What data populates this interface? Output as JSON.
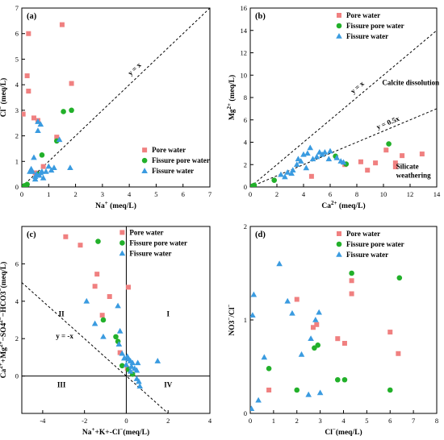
{
  "colors": {
    "pore": "#F08080",
    "fissure_pore": "#22B02A",
    "fissure": "#3A9BE0"
  },
  "chart_data": [
    {
      "panel": "(a)",
      "type": "scatter",
      "xlabel": "Na+ (meq/L)",
      "ylabel": "Cl- (meq/L)",
      "xlim": [
        0,
        7
      ],
      "ylim": [
        0,
        7
      ],
      "xticks": [
        0,
        1,
        2,
        3,
        4,
        5,
        6,
        7
      ],
      "yticks": [
        0,
        1,
        2,
        3,
        4,
        5,
        6,
        7
      ],
      "lines": [
        {
          "label": "y = x",
          "slope": 1
        }
      ],
      "legend": "bottom-right",
      "series": [
        {
          "name": "Pore water",
          "marker": "square",
          "color": "#F08080",
          "points": [
            [
              0.05,
              2.85
            ],
            [
              0.2,
              4.35
            ],
            [
              0.25,
              6.0
            ],
            [
              0.25,
              3.75
            ],
            [
              0.45,
              2.7
            ],
            [
              0.6,
              2.6
            ],
            [
              1.3,
              1.95
            ],
            [
              1.5,
              6.35
            ],
            [
              1.85,
              4.05
            ],
            [
              0.8,
              0.8
            ],
            [
              0.5,
              0.55
            ]
          ]
        },
        {
          "name": "Fissure pore water",
          "marker": "circle",
          "color": "#22B02A",
          "points": [
            [
              0.1,
              0.05
            ],
            [
              0.2,
              0.1
            ],
            [
              0.75,
              1.25
            ],
            [
              1.3,
              1.8
            ],
            [
              1.55,
              2.95
            ],
            [
              1.85,
              3.0
            ],
            [
              0.6,
              0.5
            ]
          ]
        },
        {
          "name": "Fissure water",
          "marker": "triangle",
          "color": "#3A9BE0",
          "points": [
            [
              0.3,
              0.6
            ],
            [
              0.35,
              0.7
            ],
            [
              0.4,
              0.6
            ],
            [
              0.45,
              1.15
            ],
            [
              0.5,
              0.3
            ],
            [
              0.55,
              0.5
            ],
            [
              0.6,
              2.2
            ],
            [
              0.6,
              2.55
            ],
            [
              0.7,
              2.45
            ],
            [
              0.7,
              0.55
            ],
            [
              0.75,
              0.6
            ],
            [
              0.8,
              0.35
            ],
            [
              0.9,
              0.6
            ],
            [
              1.0,
              0.8
            ],
            [
              1.1,
              0.65
            ],
            [
              1.2,
              0.75
            ],
            [
              1.4,
              1.85
            ],
            [
              1.8,
              0.75
            ],
            [
              0.5,
              0.4
            ],
            [
              0.65,
              0.45
            ]
          ]
        }
      ]
    },
    {
      "panel": "(b)",
      "type": "scatter",
      "xlabel": "Ca2+ (meq/L)",
      "ylabel": "Mg2+ (meq/L)",
      "xlim": [
        0,
        14
      ],
      "ylim": [
        0,
        16
      ],
      "xticks": [
        0,
        2,
        4,
        6,
        8,
        10,
        12,
        14
      ],
      "yticks": [
        0,
        2,
        4,
        6,
        8,
        10,
        12,
        14,
        16
      ],
      "lines": [
        {
          "label": "y = x",
          "slope": 1
        },
        {
          "label": "y = 0.5x",
          "slope": 0.5
        }
      ],
      "annotations": [
        "Calcite dissolution",
        "Silicate weathering"
      ],
      "legend": "top-right",
      "series": [
        {
          "name": "Pore water",
          "marker": "square",
          "color": "#F08080",
          "points": [
            [
              4.6,
              0.95
            ],
            [
              7.1,
              2.0
            ],
            [
              8.3,
              2.25
            ],
            [
              8.8,
              1.5
            ],
            [
              9.4,
              2.15
            ],
            [
              10.2,
              3.3
            ],
            [
              10.9,
              1.8
            ],
            [
              10.9,
              2.15
            ],
            [
              11.4,
              2.8
            ],
            [
              12.9,
              2.95
            ]
          ]
        },
        {
          "name": "Fissure pore water",
          "marker": "circle",
          "color": "#22B02A",
          "points": [
            [
              0.2,
              0.1
            ],
            [
              0.3,
              0.15
            ],
            [
              1.8,
              0.6
            ],
            [
              6.4,
              2.75
            ],
            [
              7.2,
              2.05
            ],
            [
              10.4,
              3.85
            ]
          ]
        },
        {
          "name": "Fissure water",
          "marker": "triangle",
          "color": "#3A9BE0",
          "points": [
            [
              2.3,
              1.1
            ],
            [
              2.6,
              0.9
            ],
            [
              3.1,
              1.2
            ],
            [
              3.5,
              2.0
            ],
            [
              3.6,
              2.5
            ],
            [
              3.8,
              2.3
            ],
            [
              4.0,
              2.9
            ],
            [
              4.2,
              1.7
            ],
            [
              4.3,
              3.0
            ],
            [
              4.5,
              3.5
            ],
            [
              4.7,
              2.5
            ],
            [
              5.0,
              2.7
            ],
            [
              5.2,
              3.1
            ],
            [
              5.4,
              2.9
            ],
            [
              5.6,
              3.1
            ],
            [
              5.9,
              2.5
            ],
            [
              6.0,
              3.2
            ],
            [
              6.5,
              2.6
            ],
            [
              6.8,
              2.3
            ],
            [
              7.0,
              2.2
            ],
            [
              3.2,
              1.5
            ],
            [
              2.8,
              1.3
            ]
          ]
        }
      ]
    },
    {
      "panel": "(c)",
      "type": "scatter",
      "xlabel": "Na+ +K+ -Cl- (meq/L)",
      "ylabel": "Ca2+ +Mg2+ -SO42- -HCO3- (meq/L)",
      "xlim": [
        -5,
        4
      ],
      "ylim": [
        -2,
        8
      ],
      "xticks": [
        -4,
        -2,
        0,
        2,
        4
      ],
      "yticks": [
        0,
        2,
        4,
        6
      ],
      "lines": [
        {
          "label": "y = -x",
          "slope": -1
        }
      ],
      "quadrants": [
        "I",
        "II",
        "III",
        "IV"
      ],
      "legend": "top-right",
      "series": [
        {
          "name": "Pore water",
          "marker": "square",
          "color": "#F08080",
          "points": [
            [
              -2.9,
              7.45
            ],
            [
              -2.2,
              7.0
            ],
            [
              -1.4,
              5.45
            ],
            [
              -1.5,
              4.8
            ],
            [
              -0.8,
              4.25
            ],
            [
              -1.15,
              3.25
            ],
            [
              0.1,
              4.75
            ],
            [
              -0.3,
              1.25
            ],
            [
              0.05,
              0.4
            ]
          ]
        },
        {
          "name": "Fissure pore water",
          "marker": "circle",
          "color": "#22B02A",
          "points": [
            [
              -1.35,
              7.2
            ],
            [
              -1.1,
              3.0
            ],
            [
              -0.5,
              2.1
            ],
            [
              -0.4,
              1.85
            ],
            [
              -0.2,
              0.55
            ],
            [
              0.1,
              0.35
            ],
            [
              0.3,
              0.1
            ]
          ]
        },
        {
          "name": "Fissure water",
          "marker": "triangle",
          "color": "#3A9BE0",
          "points": [
            [
              -1.9,
              4.0
            ],
            [
              -1.5,
              2.8
            ],
            [
              -1.1,
              2.1
            ],
            [
              -0.4,
              3.75
            ],
            [
              -0.3,
              2.4
            ],
            [
              -0.35,
              1.7
            ],
            [
              -0.2,
              1.2
            ],
            [
              -0.1,
              0.95
            ],
            [
              0.0,
              0.6
            ],
            [
              0.05,
              1.05
            ],
            [
              0.1,
              0.9
            ],
            [
              0.2,
              0.8
            ],
            [
              0.25,
              0.5
            ],
            [
              0.3,
              0.7
            ],
            [
              0.4,
              0.4
            ],
            [
              0.5,
              0.3
            ],
            [
              0.55,
              0.7
            ],
            [
              0.5,
              -0.15
            ],
            [
              0.6,
              -0.3
            ],
            [
              0.65,
              -0.55
            ],
            [
              1.5,
              0.8
            ],
            [
              0.2,
              0.25
            ]
          ]
        }
      ]
    },
    {
      "panel": "(d)",
      "type": "scatter",
      "xlabel": "Cl- (meq/L)",
      "ylabel": "NO3-/Cl-",
      "xlim": [
        0,
        8
      ],
      "ylim": [
        0,
        2
      ],
      "xticks": [
        0,
        1,
        2,
        3,
        4,
        5,
        6,
        7,
        8
      ],
      "yticks": [
        0,
        1,
        2
      ],
      "legend": "top-right",
      "series": [
        {
          "name": "Pore water",
          "marker": "square",
          "color": "#F08080",
          "points": [
            [
              0.8,
              0.25
            ],
            [
              2.0,
              1.22
            ],
            [
              2.7,
              0.92
            ],
            [
              2.85,
              0.95
            ],
            [
              3.75,
              0.8
            ],
            [
              4.05,
              0.75
            ],
            [
              4.35,
              1.28
            ],
            [
              4.35,
              1.42
            ],
            [
              6.0,
              0.87
            ],
            [
              6.35,
              0.64
            ]
          ]
        },
        {
          "name": "Fissure pore water",
          "marker": "circle",
          "color": "#22B02A",
          "points": [
            [
              0.8,
              0.48
            ],
            [
              2.0,
              0.25
            ],
            [
              2.75,
              0.7
            ],
            [
              2.9,
              0.73
            ],
            [
              3.75,
              0.36
            ],
            [
              4.05,
              0.36
            ],
            [
              4.35,
              1.5
            ],
            [
              6.0,
              0.25
            ],
            [
              6.4,
              1.45
            ]
          ]
        },
        {
          "name": "Fissure water",
          "marker": "triangle",
          "color": "#3A9BE0",
          "points": [
            [
              0.05,
              0.05
            ],
            [
              0.1,
              1.05
            ],
            [
              0.15,
              1.27
            ],
            [
              0.35,
              0.14
            ],
            [
              0.6,
              0.6
            ],
            [
              1.25,
              1.6
            ],
            [
              1.8,
              1.07
            ],
            [
              2.2,
              0.63
            ],
            [
              2.5,
              0.2
            ],
            [
              2.6,
              0.8
            ],
            [
              2.8,
              1.0
            ],
            [
              2.95,
              1.08
            ],
            [
              3.0,
              0.22
            ],
            [
              1.6,
              1.2
            ]
          ]
        }
      ]
    }
  ]
}
